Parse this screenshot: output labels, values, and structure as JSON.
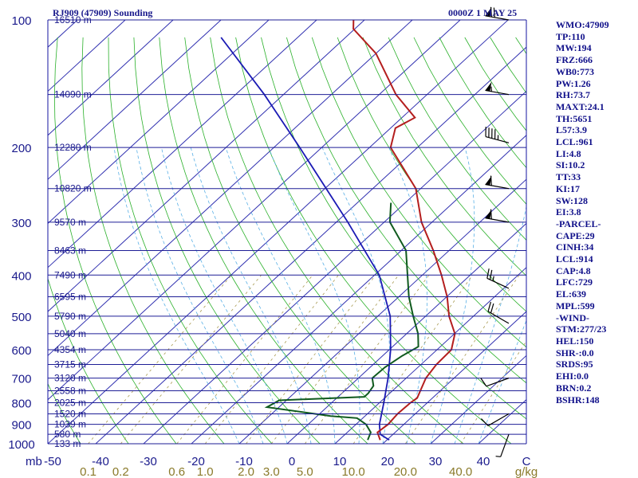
{
  "header": {
    "station_title": "RJ909 (47909) Sounding",
    "valid_time": "0000Z  1 MAY 25"
  },
  "indices": [
    "WMO:47909",
    "TP:110",
    "MW:194",
    "FRZ:666",
    "WB0:773",
    "PW:1.26",
    "RH:73.7",
    "MAXT:24.1",
    "TH:5651",
    "L57:3.9",
    "LCL:961",
    "LI:4.8",
    "SI:10.2",
    "TT:33",
    "KI:17",
    "SW:128",
    "EI:3.8",
    "-PARCEL-",
    "CAPE:29",
    "CINH:34",
    "LCL:914",
    "CAP:4.8",
    "LFC:729",
    "EL:639",
    "MPL:599",
    "-WIND-",
    "STM:277/23",
    "HEL:150",
    "SHR-:0.0",
    "SRDS:95",
    "EHI:0.0",
    "BRN:0.2",
    "BSHR:148"
  ],
  "colors": {
    "axis_blue": "#1414a0",
    "isobar": "#1e1e96",
    "isotherm": "#3030b0",
    "dry_adiabat": "#2ab02a",
    "moist_adiabat": "#5ab0e6",
    "mixing_ratio": "#a89a50",
    "temperature": "#b41e1e",
    "dewpoint": "#0f5a1e",
    "parcel": "#1a1ab4",
    "wind": "#000000"
  },
  "chart_data": {
    "type": "skew-t",
    "y_axis": {
      "unit_label": "mb",
      "scale": "log",
      "range": [
        1000,
        100
      ],
      "pressure_ticks": [
        100,
        200,
        300,
        400,
        500,
        600,
        700,
        800,
        900,
        1000
      ]
    },
    "x_axis": {
      "unit_label": "C",
      "range": [
        -50,
        50
      ],
      "ticks": [
        "-50",
        "-40",
        "-30",
        "-20",
        "-10",
        "0",
        "10",
        "20",
        "30",
        "40"
      ],
      "tick_values": [
        -50,
        -40,
        -30,
        -20,
        -10,
        0,
        10,
        20,
        30,
        40
      ]
    },
    "mixing_ratio_axis": {
      "unit_label": "g/kg",
      "labels": [
        "0.1",
        "0.2",
        "0.6",
        "1.0",
        "2.0",
        "3.0",
        "5.0",
        "10.0",
        "20.0",
        "40.0"
      ],
      "values": [
        0.1,
        0.2,
        0.6,
        1.0,
        2.0,
        3.0,
        5.0,
        10.0,
        20.0,
        40.0
      ]
    },
    "height_levels": [
      {
        "p": 100,
        "label": "16510 m"
      },
      {
        "p": 150,
        "label": "14090 m"
      },
      {
        "p": 200,
        "label": "12280 m"
      },
      {
        "p": 250,
        "label": "10820 m"
      },
      {
        "p": 300,
        "label": "9570 m"
      },
      {
        "p": 350,
        "label": "8463 m"
      },
      {
        "p": 400,
        "label": "7490 m"
      },
      {
        "p": 450,
        "label": "6595 m"
      },
      {
        "p": 500,
        "label": "5790 m"
      },
      {
        "p": 550,
        "label": "5040 m"
      },
      {
        "p": 600,
        "label": "4354 m"
      },
      {
        "p": 650,
        "label": "3715 m"
      },
      {
        "p": 700,
        "label": "3120 m"
      },
      {
        "p": 750,
        "label": "2558 m"
      },
      {
        "p": 800,
        "label": "2025 m"
      },
      {
        "p": 850,
        "label": "1520 m"
      },
      {
        "p": 900,
        "label": "1039 m"
      },
      {
        "p": 950,
        "label": "580 m"
      },
      {
        "p": 1000,
        "label": "133 m"
      }
    ],
    "temperature": [
      {
        "p": 980,
        "t": 18.6
      },
      {
        "p": 940,
        "t": 16.3
      },
      {
        "p": 900,
        "t": 16.7
      },
      {
        "p": 850,
        "t": 16.3
      },
      {
        "p": 800,
        "t": 16.5
      },
      {
        "p": 780,
        "t": 16.8
      },
      {
        "p": 700,
        "t": 14.1
      },
      {
        "p": 650,
        "t": 13.2
      },
      {
        "p": 600,
        "t": 13.0
      },
      {
        "p": 550,
        "t": 10.1
      },
      {
        "p": 500,
        "t": 4.9
      },
      {
        "p": 450,
        "t": 0.1
      },
      {
        "p": 400,
        "t": -6.0
      },
      {
        "p": 350,
        "t": -13.3
      },
      {
        "p": 300,
        "t": -22.2
      },
      {
        "p": 250,
        "t": -31.0
      },
      {
        "p": 200,
        "t": -45.6
      },
      {
        "p": 180,
        "t": -49.0
      },
      {
        "p": 170,
        "t": -47.3
      },
      {
        "p": 150,
        "t": -56.5
      },
      {
        "p": 120,
        "t": -70.0
      },
      {
        "p": 105,
        "t": -80.3
      },
      {
        "p": 100,
        "t": -82.3
      }
    ],
    "dewpoint": [
      {
        "p": 980,
        "t": 16.0
      },
      {
        "p": 940,
        "t": 14.9
      },
      {
        "p": 900,
        "t": 12.1
      },
      {
        "p": 870,
        "t": 8.8
      },
      {
        "p": 860,
        "t": 2.8
      },
      {
        "p": 820,
        "t": -12.5
      },
      {
        "p": 790,
        "t": -11.5
      },
      {
        "p": 775,
        "t": 5.5
      },
      {
        "p": 760,
        "t": 5.5
      },
      {
        "p": 730,
        "t": 4.9
      },
      {
        "p": 700,
        "t": 2.9
      },
      {
        "p": 660,
        "t": 3.1
      },
      {
        "p": 620,
        "t": 4.1
      },
      {
        "p": 590,
        "t": 5.4
      },
      {
        "p": 550,
        "t": 2.4
      },
      {
        "p": 500,
        "t": -2.6
      },
      {
        "p": 450,
        "t": -7.9
      },
      {
        "p": 400,
        "t": -13.1
      },
      {
        "p": 350,
        "t": -19.0
      },
      {
        "p": 300,
        "t": -28.8
      },
      {
        "p": 270,
        "t": -33.0
      }
    ],
    "parcel": [
      {
        "p": 980,
        "t": 20.5
      },
      {
        "p": 950,
        "t": 17.3
      },
      {
        "p": 900,
        "t": 14.9
      },
      {
        "p": 800,
        "t": 10.9
      },
      {
        "p": 700,
        "t": 6.2
      },
      {
        "p": 600,
        "t": 0.3
      },
      {
        "p": 500,
        "t": -7.4
      },
      {
        "p": 400,
        "t": -19.0
      },
      {
        "p": 300,
        "t": -37.6
      },
      {
        "p": 200,
        "t": -64.6
      },
      {
        "p": 150,
        "t": -84.0
      },
      {
        "p": 110,
        "t": -106.0
      }
    ],
    "wind_levels": [
      {
        "p": 100,
        "dir": 280,
        "speed": 70
      },
      {
        "p": 150,
        "dir": 280,
        "speed": 55
      },
      {
        "p": 195,
        "dir": 285,
        "speed": 45
      },
      {
        "p": 250,
        "dir": 280,
        "speed": 60
      },
      {
        "p": 300,
        "dir": 280,
        "speed": 60
      },
      {
        "p": 430,
        "dir": 295,
        "speed": 25
      },
      {
        "p": 520,
        "dir": 300,
        "speed": 20
      },
      {
        "p": 700,
        "dir": 250,
        "speed": 10
      },
      {
        "p": 850,
        "dir": 240,
        "speed": 10
      },
      {
        "p": 950,
        "dir": 200,
        "speed": 5
      }
    ]
  }
}
